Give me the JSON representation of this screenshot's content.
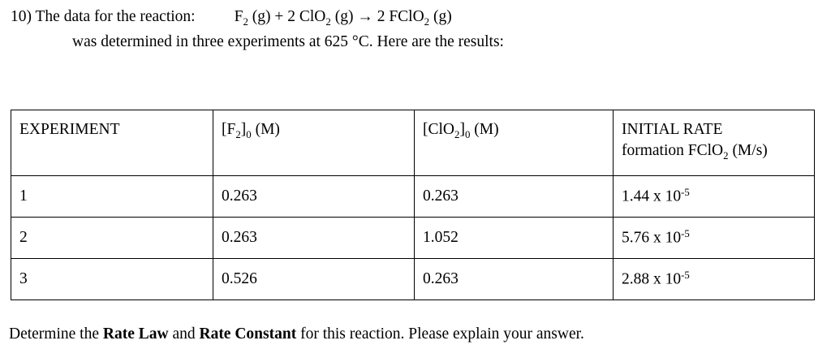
{
  "page": {
    "background": "#ffffff",
    "text_color": "#000000",
    "border_color": "#000000"
  },
  "problem": {
    "intro": "10) The data for the reaction:",
    "equation": [
      {
        "t": "F"
      },
      {
        "t": "2",
        "s": "sub"
      },
      {
        "t": " (g) + 2 ClO"
      },
      {
        "t": "2",
        "s": "sub"
      },
      {
        "t": " (g) → 2 FClO"
      },
      {
        "t": "2",
        "s": "sub"
      },
      {
        "t": " (g)"
      }
    ],
    "context": "was determined in three experiments at 625 °C. Here are the results:"
  },
  "table": {
    "headers": [
      [
        {
          "t": "EXPERIMENT"
        }
      ],
      [
        {
          "t": "[F"
        },
        {
          "t": "2",
          "s": "sub"
        },
        {
          "t": "]"
        },
        {
          "t": "0",
          "s": "sub"
        },
        {
          "t": " (M)"
        }
      ],
      [
        {
          "t": "[ClO"
        },
        {
          "t": "2",
          "s": "sub"
        },
        {
          "t": "]"
        },
        {
          "t": "0",
          "s": "sub"
        },
        {
          "t": " (M)"
        }
      ],
      [
        {
          "t": "INITIAL RATE"
        },
        {
          "br": true
        },
        {
          "t": "formation FClO"
        },
        {
          "t": "2",
          "s": "sub"
        },
        {
          "t": " (M/s)"
        }
      ]
    ],
    "rows": [
      {
        "experiment": "1",
        "f2_initial": "0.263",
        "clo2_initial": "0.263",
        "initial_rate": [
          {
            "t": "1.44 x 10"
          },
          {
            "t": "-5",
            "s": "sup"
          }
        ]
      },
      {
        "experiment": "2",
        "f2_initial": "0.263",
        "clo2_initial": "1.052",
        "initial_rate": [
          {
            "t": "5.76 x 10"
          },
          {
            "t": "-5",
            "s": "sup"
          }
        ]
      },
      {
        "experiment": "3",
        "f2_initial": "0.526",
        "clo2_initial": "0.263",
        "initial_rate": [
          {
            "t": "2.88 x 10"
          },
          {
            "t": "-5",
            "s": "sup"
          }
        ]
      }
    ]
  },
  "footer": {
    "instruction": [
      {
        "t": "Determine the "
      },
      {
        "t": "Rate Law",
        "s": "bold"
      },
      {
        "t": " and "
      },
      {
        "t": "Rate Constant",
        "s": "bold"
      },
      {
        "t": " for this reaction. Please explain your answer."
      }
    ]
  }
}
